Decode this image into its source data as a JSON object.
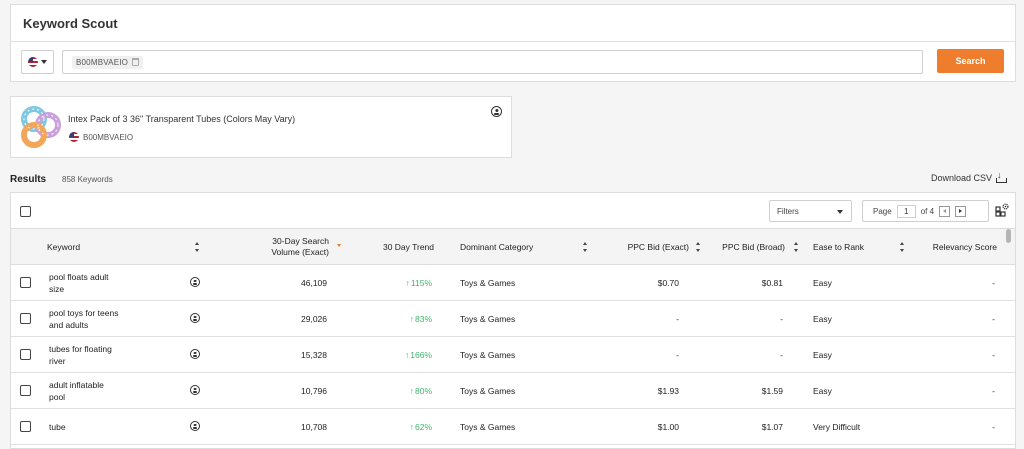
{
  "app": {
    "title": "Keyword Scout"
  },
  "search": {
    "country_icon": "us-flag-icon",
    "asin_chip": "B00MBVAEIO",
    "button_label": "Search"
  },
  "product": {
    "title": "Intex Pack of 3 36\" Transparent Tubes (Colors May Vary)",
    "asin": "B00MBVAEIO"
  },
  "results": {
    "label": "Results",
    "count": "858 Keywords",
    "download_label": "Download CSV"
  },
  "toolbar": {
    "filters_label": "Filters",
    "page_label": "Page",
    "page_value": "1",
    "page_total": "of 4"
  },
  "columns": {
    "keyword": "Keyword",
    "search_volume_line1": "30-Day Search",
    "search_volume_line2": "Volume (Exact)",
    "trend": "30 Day Trend",
    "category": "Dominant Category",
    "ppc_exact": "PPC Bid (Exact)",
    "ppc_broad": "PPC Bid (Broad)",
    "ease": "Ease to Rank",
    "relevancy": "Relevancy Score"
  },
  "rows": [
    {
      "keyword_line1": "pool floats adult",
      "keyword_line2": "size",
      "volume": "46,109",
      "trend": "115%",
      "category": "Toys & Games",
      "ppc_exact": "$0.70",
      "ppc_broad": "$0.81",
      "ease": "Easy",
      "relevancy": "-"
    },
    {
      "keyword_line1": "pool toys for teens",
      "keyword_line2": "and adults",
      "volume": "29,026",
      "trend": "83%",
      "category": "Toys & Games",
      "ppc_exact": "-",
      "ppc_broad": "-",
      "ease": "Easy",
      "relevancy": "-"
    },
    {
      "keyword_line1": "tubes for floating",
      "keyword_line2": "river",
      "volume": "15,328",
      "trend": "166%",
      "category": "Toys & Games",
      "ppc_exact": "-",
      "ppc_broad": "-",
      "ease": "Easy",
      "relevancy": "-"
    },
    {
      "keyword_line1": "adult inflatable",
      "keyword_line2": "pool",
      "volume": "10,796",
      "trend": "80%",
      "category": "Toys & Games",
      "ppc_exact": "$1.93",
      "ppc_broad": "$1.59",
      "ease": "Easy",
      "relevancy": "-"
    },
    {
      "keyword_line1": "tube",
      "keyword_line2": "",
      "volume": "10,708",
      "trend": "62%",
      "category": "Toys & Games",
      "ppc_exact": "$1.00",
      "ppc_broad": "$1.07",
      "ease": "Very Difficult",
      "relevancy": "-"
    }
  ],
  "colors": {
    "accent": "#ee7d2d",
    "trend_up": "#43b36d"
  }
}
